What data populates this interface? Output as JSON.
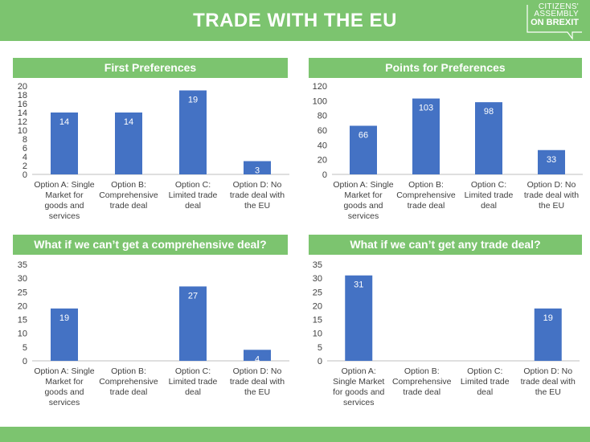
{
  "header": {
    "title": "TRADE WITH THE EU",
    "logo": {
      "line1": "CITIZENS'",
      "line2": "ASSEMBLY",
      "line3": "ON BREXIT"
    }
  },
  "colors": {
    "header": "#7cc46f",
    "bar": "#4472c4",
    "axis": "#bfbfbf",
    "text": "#404040"
  },
  "chart_data": [
    {
      "type": "bar",
      "title": "First Preferences",
      "categories": [
        [
          "Option A: Single",
          "Market for",
          "goods and",
          "services"
        ],
        [
          "Option B:",
          "Comprehensive",
          "trade deal"
        ],
        [
          "Option C:",
          "Limited trade",
          "deal"
        ],
        [
          "Option D: No",
          "trade deal with",
          "the EU"
        ]
      ],
      "values": [
        14,
        14,
        19,
        3
      ],
      "ylim": [
        0,
        20
      ],
      "yticks": [
        0,
        2,
        4,
        6,
        8,
        10,
        12,
        14,
        16,
        18,
        20
      ],
      "grid": false,
      "xlabel": "",
      "ylabel": ""
    },
    {
      "type": "bar",
      "title": "Points for Preferences",
      "categories": [
        [
          "Option A: Single",
          "Market for",
          "goods and",
          "services"
        ],
        [
          "Option B:",
          "Comprehensive",
          "trade deal"
        ],
        [
          "Option C:",
          "Limited trade",
          "deal"
        ],
        [
          "Option D: No",
          "trade deal with",
          "the EU"
        ]
      ],
      "values": [
        66,
        103,
        98,
        33
      ],
      "ylim": [
        0,
        120
      ],
      "yticks": [
        0,
        20,
        40,
        60,
        80,
        100,
        120
      ],
      "grid": false,
      "xlabel": "",
      "ylabel": ""
    },
    {
      "type": "bar",
      "title": "What if we can’t get a comprehensive deal?",
      "categories": [
        [
          "Option A: Single",
          "Market for",
          "goods and",
          "services"
        ],
        [
          "Option B:",
          "Comprehensive",
          "trade deal"
        ],
        [
          "Option C:",
          "Limited trade",
          "deal"
        ],
        [
          "Option D: No",
          "trade deal with",
          "the EU"
        ]
      ],
      "values": [
        19,
        null,
        27,
        4
      ],
      "ylim": [
        0,
        35
      ],
      "yticks": [
        0,
        5,
        10,
        15,
        20,
        25,
        30,
        35
      ],
      "grid": false,
      "xlabel": "",
      "ylabel": ""
    },
    {
      "type": "bar",
      "title": "What if we can’t get any trade deal?",
      "categories": [
        [
          "Option A:",
          "Single Market",
          "for goods and",
          "services"
        ],
        [
          "Option B:",
          "Comprehensive",
          "trade deal"
        ],
        [
          "Option C:",
          "Limited trade",
          "deal"
        ],
        [
          "Option D: No",
          "trade deal with",
          "the EU"
        ]
      ],
      "values": [
        31,
        null,
        null,
        19
      ],
      "ylim": [
        0,
        35
      ],
      "yticks": [
        0,
        5,
        10,
        15,
        20,
        25,
        30,
        35
      ],
      "grid": false,
      "xlabel": "",
      "ylabel": ""
    }
  ]
}
